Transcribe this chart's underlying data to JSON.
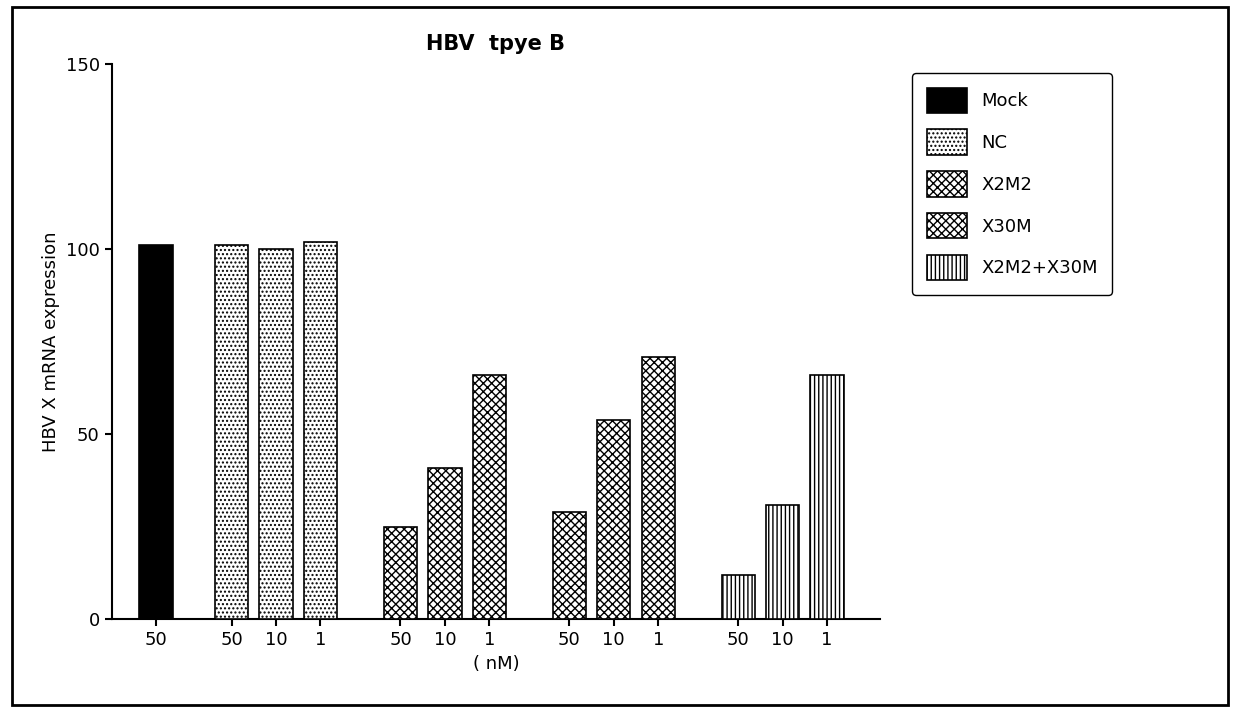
{
  "title": "HBV  tpye B",
  "ylabel": "HBV X mRNA expression",
  "xlabel": "( nM)",
  "ylim": [
    0,
    150
  ],
  "yticks": [
    0,
    50,
    100,
    150
  ],
  "groups": [
    {
      "label": "Mock",
      "hatch": "",
      "facecolor": "#000000",
      "edgecolor": "#000000",
      "bars": [
        {
          "x_label": "50",
          "value": 101
        }
      ]
    },
    {
      "label": "NC",
      "hatch": "dots",
      "facecolor": "#ffffff",
      "edgecolor": "#000000",
      "bars": [
        {
          "x_label": "50",
          "value": 101
        },
        {
          "x_label": "10",
          "value": 100
        },
        {
          "x_label": "1",
          "value": 102
        }
      ]
    },
    {
      "label": "X2M2",
      "hatch": "small_check",
      "facecolor": "#ffffff",
      "edgecolor": "#000000",
      "bars": [
        {
          "x_label": "50",
          "value": 25
        },
        {
          "x_label": "10",
          "value": 41
        },
        {
          "x_label": "1",
          "value": 66
        }
      ]
    },
    {
      "label": "X30M",
      "hatch": "large_check",
      "facecolor": "#ffffff",
      "edgecolor": "#000000",
      "bars": [
        {
          "x_label": "50",
          "value": 29
        },
        {
          "x_label": "10",
          "value": 54
        },
        {
          "x_label": "1",
          "value": 71
        }
      ]
    },
    {
      "label": "X2M2+X30M",
      "hatch": "vlines",
      "facecolor": "#ffffff",
      "edgecolor": "#000000",
      "bars": [
        {
          "x_label": "50",
          "value": 12
        },
        {
          "x_label": "10",
          "value": 31
        },
        {
          "x_label": "1",
          "value": 66
        }
      ]
    }
  ],
  "group_positions": [
    [
      1.5
    ],
    [
      3.2,
      4.2,
      5.2
    ],
    [
      7.0,
      8.0,
      9.0
    ],
    [
      10.8,
      11.8,
      12.8
    ],
    [
      14.6,
      15.6,
      16.6
    ]
  ],
  "bar_width": 0.75,
  "background_color": "#ffffff",
  "title_fontsize": 15,
  "axis_fontsize": 13,
  "tick_fontsize": 13,
  "legend_fontsize": 13,
  "figsize": [
    12.4,
    7.12
  ],
  "dpi": 100
}
